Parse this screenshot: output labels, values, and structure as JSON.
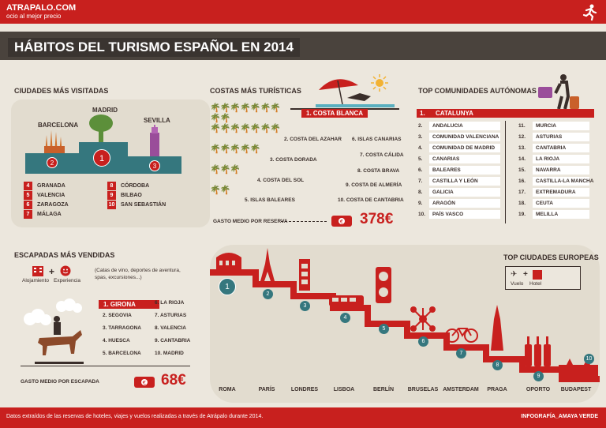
{
  "header": {
    "logo": "ATRAPALO.COM",
    "tagline": "ocio al mejor precio"
  },
  "title": "HÁBITOS DEL TURISMO ESPAÑOL EN 2014",
  "ciudades": {
    "title": "CIUDADES MÁS VISITADAS",
    "podium": [
      {
        "name": "BARCELONA",
        "rank": "2"
      },
      {
        "name": "MADRID",
        "rank": "1"
      },
      {
        "name": "SEVILLA",
        "rank": "3"
      }
    ],
    "list_left": [
      {
        "n": "4",
        "name": "GRANADA"
      },
      {
        "n": "5",
        "name": "VALENCIA"
      },
      {
        "n": "6",
        "name": "ZARAGOZA"
      },
      {
        "n": "7",
        "name": "MÁLAGA"
      }
    ],
    "list_right": [
      {
        "n": "8",
        "name": "CÓRDOBA"
      },
      {
        "n": "9",
        "name": "BILBAO"
      },
      {
        "n": "10",
        "name": "SAN SEBASTIÁN"
      }
    ]
  },
  "costas": {
    "title": "COSTAS MÁS TURÍSTICAS",
    "first": "1. COSTA BLANCA",
    "items": [
      "2. COSTA DEL AZAHAR",
      "3. COSTA DORADA",
      "4. COSTA DEL SOL",
      "5. ISLAS BALEARES",
      "6. ISLAS CANARIAS",
      "7. COSTA CÁLIDA",
      "8. COSTA BRAVA",
      "9. COSTA DE ALMERÍA",
      "10. COSTA DE CANTABRIA"
    ],
    "spend_label": "GASTO MEDIO POR RESERVA",
    "spend_value": "378€"
  },
  "comunidades": {
    "title": "TOP COMUNIDADES AUTÓNOMAS",
    "first": {
      "n": "1.",
      "name": "CATALUNYA"
    },
    "col1": [
      {
        "n": "2.",
        "name": "ANDALUCIA"
      },
      {
        "n": "3.",
        "name": "COMUNIDAD VALENCIANA"
      },
      {
        "n": "4.",
        "name": "COMUNIDAD DE MADRID"
      },
      {
        "n": "5.",
        "name": "CANARIAS"
      },
      {
        "n": "6.",
        "name": "BALEARES"
      },
      {
        "n": "7.",
        "name": "CASTILLA Y LEÓN"
      },
      {
        "n": "8.",
        "name": "GALICIA"
      },
      {
        "n": "9.",
        "name": "ARAGÓN"
      },
      {
        "n": "10.",
        "name": "PAÍS VASCO"
      }
    ],
    "col2": [
      {
        "n": "11.",
        "name": "MURCIA"
      },
      {
        "n": "12.",
        "name": "ASTURIAS"
      },
      {
        "n": "13.",
        "name": "CANTABRIA"
      },
      {
        "n": "14.",
        "name": "LA RIOJA"
      },
      {
        "n": "15.",
        "name": "NAVARRA"
      },
      {
        "n": "16.",
        "name": "CASTILLA-LA MANCHA"
      },
      {
        "n": "17.",
        "name": "EXTREMADURA"
      },
      {
        "n": "18.",
        "name": "CEUTA"
      },
      {
        "n": "19.",
        "name": "MELILLA"
      }
    ]
  },
  "escapadas": {
    "title": "ESCAPADAS MÁS VENDIDAS",
    "icon_a": "Alojamiento",
    "icon_b": "Experiencia",
    "note": "(Catas de vino, deportes de aventura, spas, excursiones...)",
    "first": "1. GIRONA",
    "col1": [
      "2. SEGOVIA",
      "3. TARRAGONA",
      "4. HUESCA",
      "5. BARCELONA"
    ],
    "col2": [
      "6. LA RIOJA",
      "7. ASTURIAS",
      "8. VALENCIA",
      "9. CANTABRIA",
      "10. MADRID"
    ],
    "spend_label": "GASTO MEDIO POR ESCAPADA",
    "spend_value": "68€"
  },
  "europa": {
    "title": "TOP CIUDADES EUROPEAS",
    "legend_a": "Vuelo",
    "legend_b": "Hotel",
    "cities": [
      {
        "n": "1",
        "name": "ROMA"
      },
      {
        "n": "2",
        "name": "PARÍS"
      },
      {
        "n": "3",
        "name": "LONDRES"
      },
      {
        "n": "4",
        "name": "LISBOA"
      },
      {
        "n": "5",
        "name": "BERLÍN"
      },
      {
        "n": "6",
        "name": "BRUSELAS"
      },
      {
        "n": "7",
        "name": "AMSTERDAM"
      },
      {
        "n": "8",
        "name": "PRAGA"
      },
      {
        "n": "9",
        "name": "OPORTO"
      },
      {
        "n": "10",
        "name": "BUDAPEST"
      }
    ]
  },
  "footer": {
    "note": "Datos extraídos de las reservas de hoteles, viajes y vuelos realizadas a través de Atrápalo durante 2014.",
    "credit": "INFOGRAFÍA_AMAYA VERDE"
  }
}
